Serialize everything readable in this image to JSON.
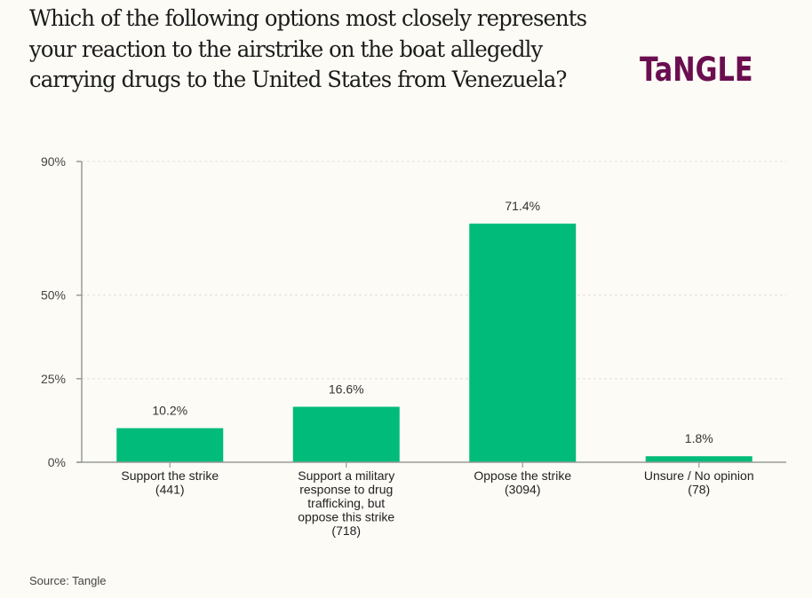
{
  "header": {
    "title": "Which of the following options most closely represents your reaction to the airstrike on the boat allegedly carrying drugs to the United States from Venezuela?",
    "logo": "TaNGLE",
    "brand_color": "#6a0e4f"
  },
  "footer": {
    "source": "Source: Tangle"
  },
  "chart_data": {
    "type": "bar",
    "title": "Which of the following options most closely represents your reaction to the airstrike on the boat allegedly carrying drugs to the United States from Venezuela?",
    "xlabel": "",
    "ylabel": "",
    "ylim": [
      0,
      90
    ],
    "yticks": [
      0,
      25,
      50,
      90
    ],
    "ytick_labels": [
      "0%",
      "25%",
      "50%",
      "90%"
    ],
    "grid": true,
    "bar_color": "#00bb7a",
    "categories": [
      [
        "Support the strike",
        "(441)"
      ],
      [
        "Support a military",
        "response to drug",
        "trafficking, but",
        "oppose this strike",
        "(718)"
      ],
      [
        "Oppose the strike",
        "(3094)"
      ],
      [
        "Unsure / No opinion",
        "(78)"
      ]
    ],
    "category_names": [
      "Support the strike",
      "Support a military response to drug trafficking, but oppose this strike",
      "Oppose the strike",
      "Unsure / No opinion"
    ],
    "counts": [
      441,
      718,
      3094,
      78
    ],
    "values": [
      10.2,
      16.6,
      71.4,
      1.8
    ],
    "data_labels": [
      "10.2%",
      "16.6%",
      "71.4%",
      "1.8%"
    ]
  }
}
